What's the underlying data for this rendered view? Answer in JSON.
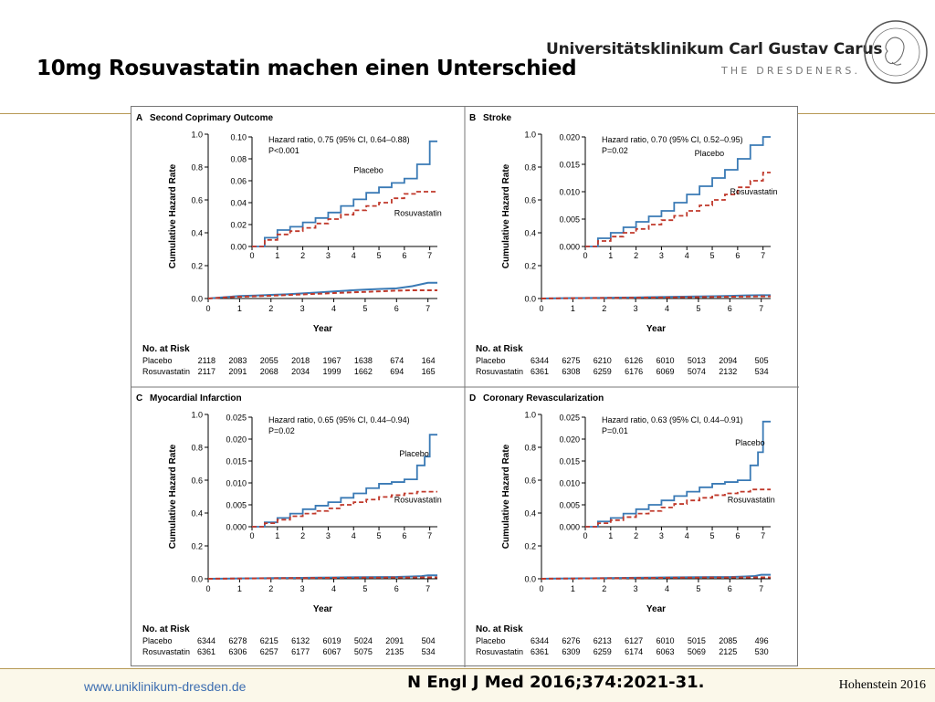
{
  "slide": {
    "title": "10mg Rosuvastatin machen einen Unterschied",
    "institution": "Universitätsklinikum Carl Gustav Carus",
    "institution_sub": "THE DRESDENERS.",
    "footer_url": "www.uniklinikum-dresden.de",
    "citation": "N Engl J Med 2016;374:2021-31.",
    "author": "Hohenstein 2016"
  },
  "colors": {
    "placebo": "#3a7ab5",
    "rosuvastatin": "#c0392b",
    "accent_rule": "#b79a55"
  },
  "chart_data": [
    {
      "type": "line",
      "panel": "A",
      "title": "Second Coprimary Outcome",
      "xlabel": "Year",
      "ylabel": "Cumulative Hazard Rate",
      "xlim": [
        0,
        7.3
      ],
      "ylim": [
        0,
        1.0
      ],
      "x_ticks": [
        "0",
        "1",
        "2",
        "3",
        "4",
        "5",
        "6",
        "7"
      ],
      "y_ticks": [
        "0.0",
        "0.2",
        "0.4",
        "0.6",
        "0.8",
        "1.0"
      ],
      "inset": {
        "ylim": [
          0,
          0.1
        ],
        "y_ticks": [
          "0.00",
          "0.02",
          "0.04",
          "0.06",
          "0.08",
          "0.10"
        ],
        "hazard_text": "Hazard ratio, 0.75 (95% CI, 0.64–0.88)",
        "p_text": "P<0.001",
        "placebo_label": "Placebo",
        "rosuvastatin_label": "Rosuvastatin",
        "placebo_label_at": [
          4.0,
          0.067
        ],
        "rosuvastatin_label_at": [
          5.6,
          0.028
        ]
      },
      "series": [
        {
          "name": "Placebo",
          "x": [
            0,
            0.5,
            1,
            1.5,
            2,
            2.5,
            3,
            3.5,
            4,
            4.5,
            5,
            5.5,
            6,
            6.5,
            7,
            7.3
          ],
          "values": [
            0,
            0.008,
            0.015,
            0.018,
            0.022,
            0.026,
            0.031,
            0.037,
            0.043,
            0.049,
            0.054,
            0.058,
            0.062,
            0.075,
            0.096,
            0.096
          ]
        },
        {
          "name": "Rosuvastatin",
          "x": [
            0,
            0.5,
            1,
            1.5,
            2,
            2.5,
            3,
            3.5,
            4,
            4.5,
            5,
            5.5,
            6,
            6.5,
            7,
            7.3
          ],
          "values": [
            0,
            0.006,
            0.011,
            0.014,
            0.017,
            0.021,
            0.025,
            0.029,
            0.033,
            0.037,
            0.04,
            0.044,
            0.048,
            0.05,
            0.05,
            0.05
          ]
        }
      ],
      "risk": {
        "heading": "No. at Risk",
        "rows": [
          {
            "label": "Placebo",
            "values": [
              "2118",
              "2083",
              "2055",
              "2018",
              "1967",
              "1638",
              "674",
              "164"
            ]
          },
          {
            "label": "Rosuvastatin",
            "values": [
              "2117",
              "2091",
              "2068",
              "2034",
              "1999",
              "1662",
              "694",
              "165"
            ]
          }
        ]
      }
    },
    {
      "type": "line",
      "panel": "B",
      "title": "Stroke",
      "xlabel": "Year",
      "ylabel": "Cumulative Hazard Rate",
      "xlim": [
        0,
        7.3
      ],
      "ylim": [
        0,
        1.0
      ],
      "x_ticks": [
        "0",
        "1",
        "2",
        "3",
        "4",
        "5",
        "6",
        "7"
      ],
      "y_ticks": [
        "0.0",
        "0.2",
        "0.4",
        "0.6",
        "0.8",
        "1.0"
      ],
      "inset": {
        "ylim": [
          0,
          0.02
        ],
        "y_ticks": [
          "0.000",
          "0.005",
          "0.010",
          "0.015",
          "0.020"
        ],
        "hazard_text": "Hazard ratio, 0.70 (95% CI, 0.52–0.95)",
        "p_text": "P=0.02",
        "placebo_label": "Placebo",
        "rosuvastatin_label": "Rosuvastatin",
        "placebo_label_at": [
          4.3,
          0.0165
        ],
        "rosuvastatin_label_at": [
          5.7,
          0.0095
        ]
      },
      "series": [
        {
          "name": "Placebo",
          "x": [
            0,
            0.5,
            1,
            1.5,
            2,
            2.5,
            3,
            3.5,
            4,
            4.5,
            5,
            5.5,
            6,
            6.5,
            7,
            7.3
          ],
          "values": [
            0,
            0.0015,
            0.0025,
            0.0035,
            0.0045,
            0.0055,
            0.0065,
            0.008,
            0.0095,
            0.011,
            0.0125,
            0.014,
            0.016,
            0.0185,
            0.02,
            0.02
          ]
        },
        {
          "name": "Rosuvastatin",
          "x": [
            0,
            0.5,
            1,
            1.5,
            2,
            2.5,
            3,
            3.5,
            4,
            4.5,
            5,
            5.5,
            6,
            6.5,
            7,
            7.3
          ],
          "values": [
            0,
            0.001,
            0.0018,
            0.0025,
            0.0032,
            0.004,
            0.0048,
            0.0056,
            0.0065,
            0.0075,
            0.0085,
            0.0095,
            0.0108,
            0.012,
            0.0135,
            0.0135
          ]
        }
      ],
      "risk": {
        "heading": "No. at Risk",
        "rows": [
          {
            "label": "Placebo",
            "values": [
              "6344",
              "6275",
              "6210",
              "6126",
              "6010",
              "5013",
              "2094",
              "505"
            ]
          },
          {
            "label": "Rosuvastatin",
            "values": [
              "6361",
              "6308",
              "6259",
              "6176",
              "6069",
              "5074",
              "2132",
              "534"
            ]
          }
        ]
      }
    },
    {
      "type": "line",
      "panel": "C",
      "title": "Myocardial Infarction",
      "xlabel": "Year",
      "ylabel": "Cumulative Hazard Rate",
      "xlim": [
        0,
        7.3
      ],
      "ylim": [
        0,
        1.0
      ],
      "x_ticks": [
        "0",
        "1",
        "2",
        "3",
        "4",
        "5",
        "6",
        "7"
      ],
      "y_ticks": [
        "0.0",
        "0.2",
        "0.4",
        "0.6",
        "0.8",
        "1.0"
      ],
      "inset": {
        "ylim": [
          0,
          0.025
        ],
        "y_ticks": [
          "0.000",
          "0.005",
          "0.010",
          "0.015",
          "0.020",
          "0.025"
        ],
        "hazard_text": "Hazard ratio, 0.65 (95% CI, 0.44–0.94)",
        "p_text": "P=0.02",
        "placebo_label": "Placebo",
        "rosuvastatin_label": "Rosuvastatin",
        "placebo_label_at": [
          5.8,
          0.016
        ],
        "rosuvastatin_label_at": [
          5.6,
          0.0055
        ]
      },
      "series": [
        {
          "name": "Placebo",
          "x": [
            0,
            0.5,
            1,
            1.5,
            2,
            2.5,
            3,
            3.5,
            4,
            4.5,
            5,
            5.5,
            6,
            6.5,
            6.8,
            7,
            7.3
          ],
          "values": [
            0,
            0.001,
            0.002,
            0.003,
            0.004,
            0.0048,
            0.0056,
            0.0066,
            0.0076,
            0.0088,
            0.0098,
            0.0102,
            0.0108,
            0.014,
            0.016,
            0.021,
            0.021
          ]
        },
        {
          "name": "Rosuvastatin",
          "x": [
            0,
            0.5,
            1,
            1.5,
            2,
            2.5,
            3,
            3.5,
            4,
            4.5,
            5,
            5.5,
            6,
            6.5,
            7,
            7.3
          ],
          "values": [
            0,
            0.0008,
            0.0016,
            0.0024,
            0.003,
            0.0036,
            0.0042,
            0.005,
            0.0056,
            0.0062,
            0.0068,
            0.0072,
            0.0076,
            0.008,
            0.008,
            0.008
          ]
        }
      ],
      "risk": {
        "heading": "No. at Risk",
        "rows": [
          {
            "label": "Placebo",
            "values": [
              "6344",
              "6278",
              "6215",
              "6132",
              "6019",
              "5024",
              "2091",
              "504"
            ]
          },
          {
            "label": "Rosuvastatin",
            "values": [
              "6361",
              "6306",
              "6257",
              "6177",
              "6067",
              "5075",
              "2135",
              "534"
            ]
          }
        ]
      }
    },
    {
      "type": "line",
      "panel": "D",
      "title": "Coronary Revascularization",
      "xlabel": "Year",
      "ylabel": "Cumulative Hazard Rate",
      "xlim": [
        0,
        7.3
      ],
      "ylim": [
        0,
        1.0
      ],
      "x_ticks": [
        "0",
        "1",
        "2",
        "3",
        "4",
        "5",
        "6",
        "7"
      ],
      "y_ticks": [
        "0.0",
        "0.2",
        "0.4",
        "0.6",
        "0.8",
        "1.0"
      ],
      "inset": {
        "ylim": [
          0,
          0.025
        ],
        "y_ticks": [
          "0.000",
          "0.005",
          "0.010",
          "0.015",
          "0.020",
          "0.025"
        ],
        "hazard_text": "Hazard ratio, 0.63 (95% CI, 0.44–0.91)",
        "p_text": "P=0.01",
        "placebo_label": "Placebo",
        "rosuvastatin_label": "Rosuvastatin",
        "placebo_label_at": [
          5.9,
          0.0185
        ],
        "rosuvastatin_label_at": [
          5.6,
          0.0055
        ]
      },
      "series": [
        {
          "name": "Placebo",
          "x": [
            0,
            0.5,
            1,
            1.5,
            2,
            2.5,
            3,
            3.5,
            4,
            4.5,
            5,
            5.5,
            6,
            6.5,
            6.8,
            7,
            7.3
          ],
          "values": [
            0,
            0.0012,
            0.002,
            0.003,
            0.004,
            0.005,
            0.006,
            0.007,
            0.008,
            0.009,
            0.0098,
            0.0102,
            0.0106,
            0.014,
            0.017,
            0.024,
            0.024
          ]
        },
        {
          "name": "Rosuvastatin",
          "x": [
            0,
            0.5,
            1,
            1.5,
            2,
            2.5,
            3,
            3.5,
            4,
            4.5,
            5,
            5.5,
            6,
            6.5,
            7,
            7.3
          ],
          "values": [
            0,
            0.0008,
            0.0015,
            0.0022,
            0.003,
            0.0036,
            0.0044,
            0.0052,
            0.006,
            0.0066,
            0.0072,
            0.0076,
            0.008,
            0.0085,
            0.0085,
            0.0085
          ]
        }
      ],
      "risk": {
        "heading": "No. at Risk",
        "rows": [
          {
            "label": "Placebo",
            "values": [
              "6344",
              "6276",
              "6213",
              "6127",
              "6010",
              "5015",
              "2085",
              "496"
            ]
          },
          {
            "label": "Rosuvastatin",
            "values": [
              "6361",
              "6309",
              "6259",
              "6174",
              "6063",
              "5069",
              "2125",
              "530"
            ]
          }
        ]
      }
    }
  ]
}
